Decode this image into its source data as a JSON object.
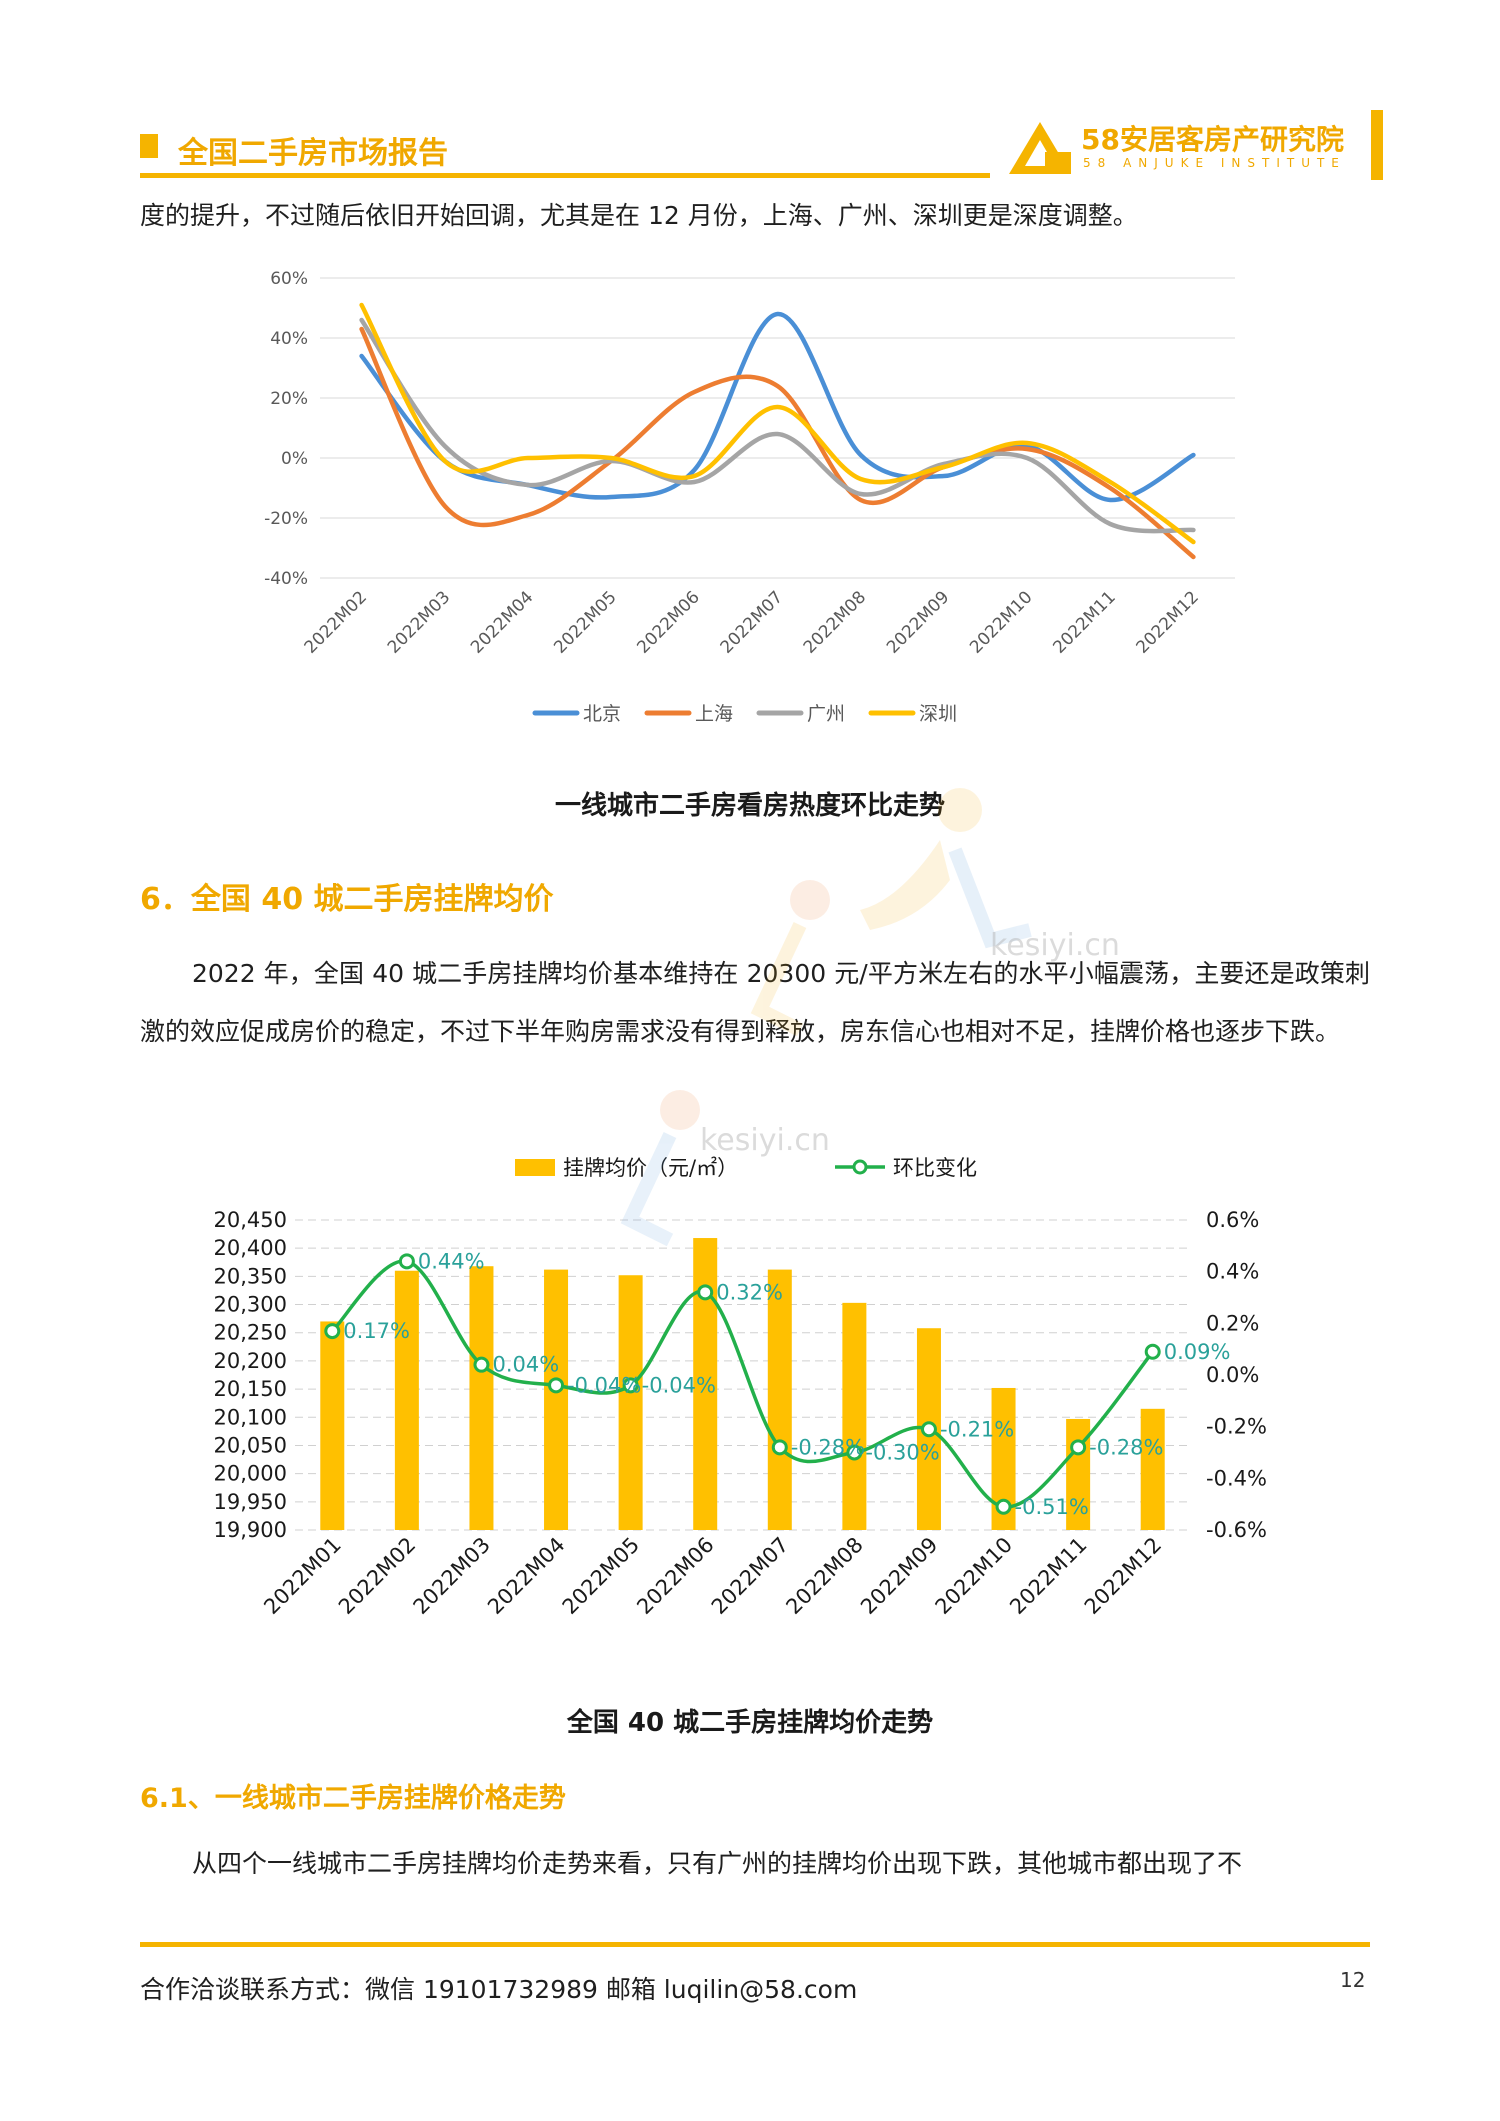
{
  "header": {
    "title": "全国二手房市场报告",
    "logo_cn": "58安居客房产研究院",
    "logo_en": "58 ANJUKE INSTITUTE"
  },
  "body": {
    "intro_line": "度的提升，不过随后依旧开始回调，尤其是在 12 月份，上海、广州、深圳更是深度调整。",
    "section6_title": "6．全国 40 城二手房挂牌均价",
    "section6_text": "2022 年，全国 40 城二手房挂牌均价基本维持在 20300 元/平方米左右的水平小幅震荡，主要还是政策刺激的效应促成房价的稳定，不过下半年购房需求没有得到释放，房东信心也相对不足，挂牌价格也逐步下跌。",
    "section61_title": "6.1、一线城市二手房挂牌价格走势",
    "section61_text": "从四个一线城市二手房挂牌均价走势来看，只有广州的挂牌均价出现下跌，其他城市都出现了不"
  },
  "watermark": {
    "text": "kesiyi.cn"
  },
  "chart_data": [
    {
      "type": "line",
      "title": "一线城市二手房看房热度环比走势",
      "categories": [
        "2022M02",
        "2022M03",
        "2022M04",
        "2022M05",
        "2022M06",
        "2022M07",
        "2022M08",
        "2022M09",
        "2022M10",
        "2022M11",
        "2022M12"
      ],
      "y_ticks": [
        "60%",
        "40%",
        "20%",
        "0%",
        "-20%",
        "-40%"
      ],
      "ylim": [
        -40,
        60
      ],
      "unit": "%",
      "legend_position": "bottom",
      "series": [
        {
          "name": "北京",
          "color": "#4a8fd6",
          "values": [
            34,
            -1,
            -9,
            -13,
            -4,
            48,
            1,
            -6,
            4,
            -14,
            1
          ]
        },
        {
          "name": "上海",
          "color": "#ed7d31",
          "values": [
            43,
            -16,
            -19,
            -1,
            22,
            24,
            -14,
            -3,
            3,
            -10,
            -33
          ]
        },
        {
          "name": "广州",
          "color": "#a5a5a5",
          "values": [
            46,
            4,
            -9,
            -1,
            -8,
            8,
            -12,
            -2,
            0,
            -22,
            -24
          ]
        },
        {
          "name": "深圳",
          "color": "#ffc000",
          "values": [
            51,
            -1,
            0,
            0,
            -6,
            17,
            -7,
            -3,
            5,
            -8,
            -28
          ]
        }
      ]
    },
    {
      "type": "bar+line",
      "title": "全国 40 城二手房挂牌均价走势",
      "categories": [
        "2022M01",
        "2022M02",
        "2022M03",
        "2022M04",
        "2022M05",
        "2022M06",
        "2022M07",
        "2022M08",
        "2022M09",
        "2022M10",
        "2022M11",
        "2022M12"
      ],
      "bar_series": {
        "name": "挂牌均价（元/㎡）",
        "color": "#ffc000",
        "values": [
          20270,
          20360,
          20368,
          20362,
          20352,
          20418,
          20362,
          20303,
          20258,
          20152,
          20097,
          20115
        ]
      },
      "line_series": {
        "name": "环比变化",
        "color": "#22b04b",
        "values": [
          0.17,
          0.44,
          0.04,
          -0.04,
          -0.04,
          0.32,
          -0.28,
          -0.3,
          -0.21,
          -0.51,
          -0.28,
          0.09
        ],
        "labels": [
          "0.17%",
          "0.44%",
          "0.04%",
          "-0.04%",
          "-0.04%",
          "0.32%",
          "-0.28%",
          "-0.30%",
          "-0.21%",
          "-0.51%",
          "-0.28%",
          "0.09%"
        ]
      },
      "y_left_ticks": [
        "20,450",
        "20,400",
        "20,350",
        "20,300",
        "20,250",
        "20,200",
        "20,150",
        "20,100",
        "20,050",
        "20,000",
        "19,950",
        "19,900"
      ],
      "ylim_left": [
        19900,
        20450
      ],
      "y_right_ticks": [
        "0.6%",
        "0.4%",
        "0.2%",
        "0.0%",
        "-0.2%",
        "-0.4%",
        "-0.6%"
      ],
      "ylim_right": [
        -0.6,
        0.6
      ],
      "legend_position": "top"
    }
  ],
  "footer": {
    "contact": "合作洽谈联系方式：微信 19101732989    邮箱 luqilin@58.com",
    "page_number": "12"
  }
}
